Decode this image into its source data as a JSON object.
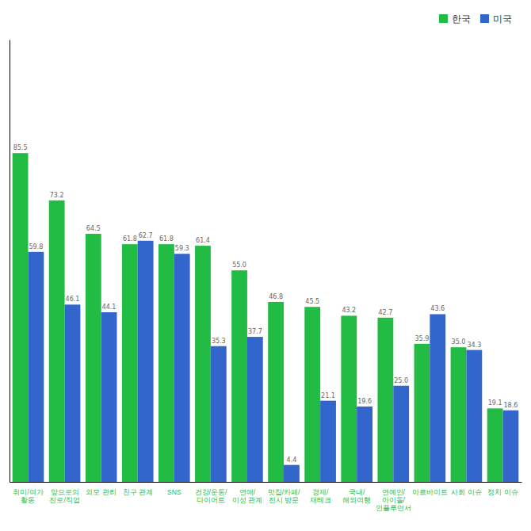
{
  "chart_data": {
    "type": "bar",
    "categories": [
      "취미/여가\n활동",
      "앞으로의\n진로/직업",
      "외모 관리",
      "친구 관계",
      "SNS",
      "건강/운동/\n다이어트",
      "연애/\n이성 관계",
      "맛집/카페/\n전시 방문",
      "경제/\n재테크",
      "국내/\n해외여행",
      "연예인/\n아이돌/\n인플루언서",
      "아르바이트",
      "사회 이슈",
      "정치 이슈"
    ],
    "series": [
      {
        "name": "한국",
        "color": "#22bb44",
        "values": [
          85.5,
          73.2,
          64.5,
          61.8,
          61.8,
          61.4,
          55.0,
          46.8,
          45.5,
          43.2,
          42.7,
          35.9,
          35.0,
          19.1
        ],
        "value_labels": [
          "85.5",
          "73.2",
          "64.5",
          "61.8",
          "61.8",
          "61.4",
          "55.0",
          "46.8",
          "45.5",
          "43.2",
          "42.7",
          "35.9",
          "35.0",
          "19.1"
        ]
      },
      {
        "name": "미국",
        "color": "#3366cc",
        "values": [
          59.8,
          46.1,
          44.1,
          62.7,
          59.3,
          35.3,
          37.7,
          4.4,
          21.1,
          19.6,
          25.0,
          43.6,
          34.3,
          18.6
        ],
        "value_labels": [
          "59.8",
          "46.1",
          "44.1",
          "62.7",
          "59.3",
          "35.3",
          "37.7",
          "4.4",
          "21.1",
          "19.6",
          "25.0",
          "43.6",
          "34.3",
          "18.6"
        ]
      }
    ],
    "ylim": [
      0,
      115
    ],
    "tick_labels": false,
    "data_labels": true,
    "legend": "upper right"
  }
}
